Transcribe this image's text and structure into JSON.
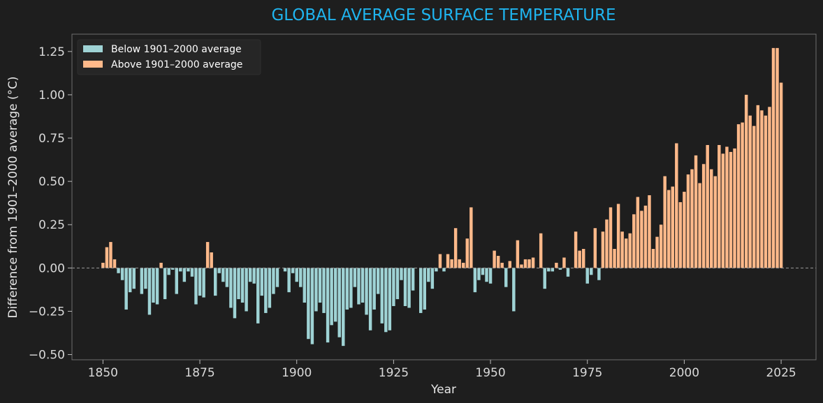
{
  "chart_data": {
    "type": "bar",
    "title": "GLOBAL AVERAGE SURFACE TEMPERATURE",
    "xlabel": "Year",
    "ylabel": "Difference from 1901–2000 average (°C)",
    "xlim": [
      1842,
      2034
    ],
    "ylim": [
      -0.53,
      1.35
    ],
    "x_ticks": [
      1850,
      1875,
      1900,
      1925,
      1950,
      1975,
      2000,
      2025
    ],
    "x_tick_labels": [
      "1850",
      "1875",
      "1900",
      "1925",
      "1950",
      "1975",
      "2000",
      "2025"
    ],
    "y_ticks": [
      -0.5,
      -0.25,
      0.0,
      0.25,
      0.5,
      0.75,
      1.0,
      1.25
    ],
    "y_tick_labels": [
      "−0.50",
      "−0.25",
      "0.00",
      "0.25",
      "0.50",
      "0.75",
      "1.00",
      "1.25"
    ],
    "grid": false,
    "zero_line": "dashed",
    "legend_position": "top-left",
    "series": [
      {
        "name": "Below 1901–2000 average",
        "color": "#9fd3d5"
      },
      {
        "name": "Above 1901–2000 average",
        "color": "#ffb98a"
      }
    ],
    "years_start": 1850,
    "values": [
      0.03,
      0.12,
      0.15,
      0.05,
      -0.03,
      -0.07,
      -0.24,
      -0.14,
      -0.12,
      0.0,
      -0.15,
      -0.12,
      -0.27,
      -0.2,
      -0.21,
      0.03,
      -0.18,
      -0.04,
      -0.01,
      -0.15,
      -0.02,
      -0.08,
      -0.02,
      -0.05,
      -0.21,
      -0.16,
      -0.17,
      0.15,
      0.09,
      -0.16,
      -0.03,
      -0.08,
      -0.11,
      -0.23,
      -0.29,
      -0.18,
      -0.2,
      -0.25,
      -0.08,
      -0.09,
      -0.32,
      -0.16,
      -0.26,
      -0.23,
      -0.15,
      -0.11,
      0.0,
      -0.02,
      -0.14,
      -0.03,
      -0.08,
      -0.11,
      -0.2,
      -0.41,
      -0.44,
      -0.25,
      -0.2,
      -0.26,
      -0.43,
      -0.33,
      -0.31,
      -0.4,
      -0.45,
      -0.24,
      -0.23,
      -0.11,
      -0.21,
      -0.2,
      -0.27,
      -0.36,
      -0.24,
      -0.15,
      -0.32,
      -0.37,
      -0.36,
      -0.22,
      -0.18,
      -0.07,
      -0.22,
      -0.23,
      -0.13,
      0.0,
      -0.26,
      -0.24,
      -0.08,
      -0.12,
      -0.02,
      0.08,
      -0.02,
      0.08,
      0.05,
      0.23,
      0.05,
      0.03,
      0.17,
      0.35,
      -0.14,
      -0.07,
      -0.04,
      -0.08,
      -0.09,
      0.1,
      0.07,
      0.03,
      -0.11,
      0.04,
      -0.25,
      0.16,
      0.02,
      0.05,
      0.05,
      0.06,
      0.0,
      0.2,
      -0.12,
      -0.02,
      -0.02,
      0.03,
      -0.01,
      0.06,
      -0.05,
      0.0,
      0.21,
      0.1,
      0.11,
      -0.09,
      -0.04,
      0.23,
      -0.07,
      0.21,
      0.28,
      0.35,
      0.11,
      0.37,
      0.21,
      0.17,
      0.2,
      0.31,
      0.41,
      0.33,
      0.36,
      0.42,
      0.11,
      0.18,
      0.25,
      0.53,
      0.45,
      0.47,
      0.72,
      0.38,
      0.44,
      0.54,
      0.57,
      0.65,
      0.49,
      0.6,
      0.71,
      0.57,
      0.53,
      0.71,
      0.66,
      0.7,
      0.67,
      0.69,
      0.83,
      0.84,
      1.0,
      0.88,
      0.82,
      0.94,
      0.91,
      0.88,
      0.93,
      1.27,
      1.27,
      1.07
    ]
  }
}
